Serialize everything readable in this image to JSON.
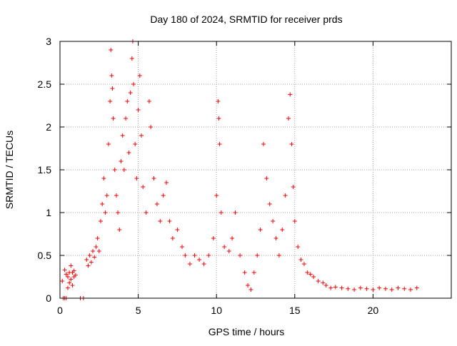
{
  "chart_data": {
    "type": "scatter",
    "title": "Day 180 of 2024, SRMTID for receiver prds",
    "xlabel": "GPS time / hours",
    "ylabel": "SRMTID / TECUs",
    "xlim": [
      0,
      25
    ],
    "ylim": [
      0,
      3
    ],
    "xticks": [
      0,
      5,
      10,
      15,
      20
    ],
    "xtick_labels": [
      "0",
      "5",
      "10",
      "15",
      "20"
    ],
    "yticks": [
      0,
      0.5,
      1,
      1.5,
      2,
      2.5,
      3
    ],
    "ytick_labels": [
      "0",
      "0.5",
      "1",
      "1.5",
      "2",
      "2.5",
      "3"
    ],
    "grid": true,
    "marker": "+",
    "series": [
      {
        "name": "SRMTID",
        "color": "#ff0000",
        "points": [
          [
            0.2,
            0.0
          ],
          [
            0.3,
            0.0
          ],
          [
            0.4,
            0.0
          ],
          [
            1.3,
            0.0
          ],
          [
            1.5,
            0.0
          ],
          [
            0.3,
            0.33
          ],
          [
            0.4,
            0.28
          ],
          [
            0.5,
            0.25
          ],
          [
            0.5,
            0.12
          ],
          [
            0.6,
            0.3
          ],
          [
            0.6,
            0.18
          ],
          [
            0.7,
            0.38
          ],
          [
            0.7,
            0.22
          ],
          [
            0.8,
            0.3
          ],
          [
            0.8,
            0.15
          ],
          [
            0.9,
            0.25
          ],
          [
            0.9,
            0.32
          ],
          [
            1.0,
            0.27
          ],
          [
            0.15,
            0.2
          ],
          [
            1.7,
            0.45
          ],
          [
            1.8,
            0.38
          ],
          [
            1.9,
            0.5
          ],
          [
            2.0,
            0.42
          ],
          [
            2.1,
            0.55
          ],
          [
            2.2,
            0.48
          ],
          [
            2.3,
            0.6
          ],
          [
            2.4,
            0.7
          ],
          [
            2.5,
            0.55
          ],
          [
            2.6,
            0.9
          ],
          [
            2.7,
            1.1
          ],
          [
            2.8,
            1.4
          ],
          [
            2.9,
            1.0
          ],
          [
            3.0,
            1.2
          ],
          [
            3.1,
            1.8
          ],
          [
            3.2,
            2.3
          ],
          [
            3.25,
            2.9
          ],
          [
            3.3,
            2.6
          ],
          [
            3.35,
            2.45
          ],
          [
            3.4,
            2.1
          ],
          [
            3.5,
            1.5
          ],
          [
            3.6,
            1.2
          ],
          [
            3.7,
            1.0
          ],
          [
            3.8,
            0.8
          ],
          [
            3.9,
            1.6
          ],
          [
            4.0,
            1.9
          ],
          [
            4.1,
            1.5
          ],
          [
            4.2,
            2.1
          ],
          [
            4.3,
            2.3
          ],
          [
            4.4,
            1.7
          ],
          [
            4.5,
            2.4
          ],
          [
            4.6,
            2.8
          ],
          [
            4.65,
            3.0
          ],
          [
            4.7,
            2.5
          ],
          [
            4.8,
            1.8
          ],
          [
            4.9,
            1.4
          ],
          [
            5.0,
            2.2
          ],
          [
            5.1,
            2.6
          ],
          [
            5.2,
            1.9
          ],
          [
            5.3,
            1.3
          ],
          [
            5.5,
            1.0
          ],
          [
            5.7,
            2.3
          ],
          [
            5.8,
            2.0
          ],
          [
            6.0,
            1.4
          ],
          [
            6.2,
            1.1
          ],
          [
            6.4,
            0.9
          ],
          [
            6.6,
            1.2
          ],
          [
            6.8,
            1.35
          ],
          [
            7.0,
            0.9
          ],
          [
            7.2,
            0.7
          ],
          [
            7.5,
            0.8
          ],
          [
            7.8,
            0.6
          ],
          [
            8.0,
            0.5
          ],
          [
            8.3,
            0.4
          ],
          [
            8.6,
            0.5
          ],
          [
            8.9,
            0.45
          ],
          [
            9.2,
            0.4
          ],
          [
            9.5,
            0.5
          ],
          [
            9.8,
            0.7
          ],
          [
            10.0,
            1.2
          ],
          [
            10.1,
            2.3
          ],
          [
            10.15,
            2.1
          ],
          [
            10.2,
            1.8
          ],
          [
            10.3,
            1.0
          ],
          [
            10.5,
            0.6
          ],
          [
            10.8,
            0.55
          ],
          [
            11.0,
            0.7
          ],
          [
            11.2,
            1.0
          ],
          [
            11.5,
            0.5
          ],
          [
            11.8,
            0.3
          ],
          [
            12.0,
            0.15
          ],
          [
            12.2,
            0.1
          ],
          [
            12.4,
            0.3
          ],
          [
            12.6,
            0.5
          ],
          [
            12.8,
            0.8
          ],
          [
            13.0,
            1.8
          ],
          [
            13.2,
            1.4
          ],
          [
            13.4,
            1.1
          ],
          [
            13.6,
            0.9
          ],
          [
            13.8,
            0.7
          ],
          [
            14.0,
            0.5
          ],
          [
            14.2,
            0.8
          ],
          [
            14.4,
            1.2
          ],
          [
            14.6,
            2.1
          ],
          [
            14.7,
            2.38
          ],
          [
            14.8,
            1.8
          ],
          [
            14.9,
            1.3
          ],
          [
            15.0,
            0.9
          ],
          [
            15.2,
            0.6
          ],
          [
            15.4,
            0.45
          ],
          [
            15.6,
            0.4
          ],
          [
            15.8,
            0.3
          ],
          [
            16.0,
            0.28
          ],
          [
            16.2,
            0.25
          ],
          [
            16.5,
            0.2
          ],
          [
            16.8,
            0.18
          ],
          [
            17.0,
            0.15
          ],
          [
            17.3,
            0.12
          ],
          [
            17.6,
            0.13
          ],
          [
            18.0,
            0.12
          ],
          [
            18.4,
            0.11
          ],
          [
            18.8,
            0.1
          ],
          [
            19.2,
            0.12
          ],
          [
            19.6,
            0.11
          ],
          [
            20.0,
            0.1
          ],
          [
            20.4,
            0.12
          ],
          [
            20.8,
            0.11
          ],
          [
            21.2,
            0.1
          ],
          [
            21.6,
            0.12
          ],
          [
            22.0,
            0.11
          ],
          [
            22.4,
            0.1
          ],
          [
            22.8,
            0.12
          ]
        ]
      }
    ]
  }
}
